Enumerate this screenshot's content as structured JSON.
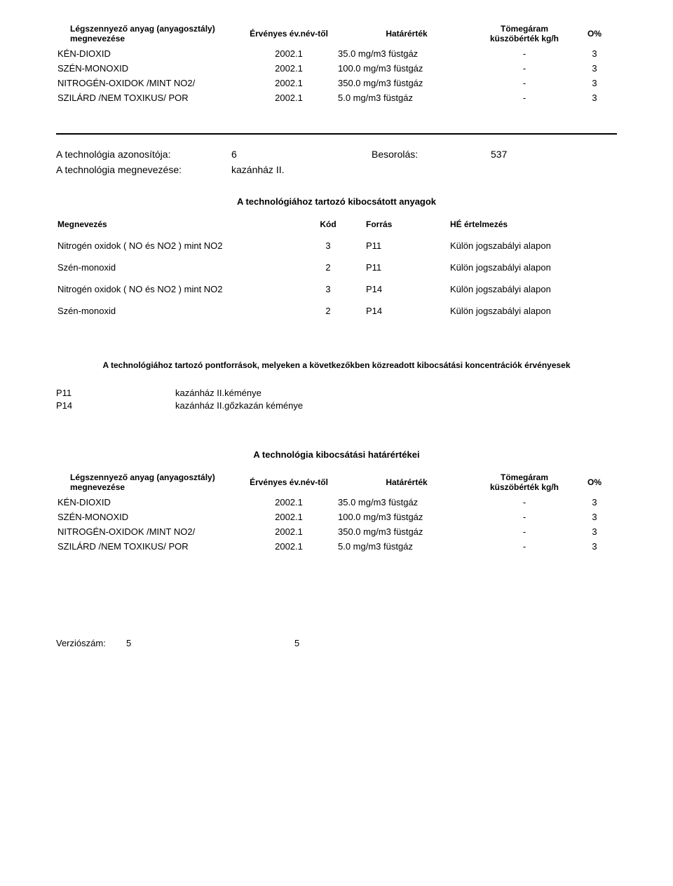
{
  "limits_header": {
    "name": "Légszennyező anyag (anyagosztály) megnevezése",
    "year": "Érvényes év.név-től",
    "limit": "Határérték",
    "flow": "Tömegáram küszöbérték kg/h",
    "pct": "O%"
  },
  "limits_rows_top": [
    {
      "name": "KÉN-DIOXID",
      "year": "2002.1",
      "limit": "35.0 mg/m3 füstgáz",
      "flow": "-",
      "pct": "3"
    },
    {
      "name": "SZÉN-MONOXID",
      "year": "2002.1",
      "limit": "100.0 mg/m3 füstgáz",
      "flow": "-",
      "pct": "3"
    },
    {
      "name": "NITROGÉN-OXIDOK /MINT NO2/",
      "year": "2002.1",
      "limit": "350.0 mg/m3 füstgáz",
      "flow": "-",
      "pct": "3"
    },
    {
      "name": "SZILÁRD /NEM TOXIKUS/ POR",
      "year": "2002.1",
      "limit": "5.0 mg/m3 füstgáz",
      "flow": "-",
      "pct": "3"
    }
  ],
  "tech": {
    "id_label": "A technológia azonosítója:",
    "id_value": "6",
    "class_label": "Besorolás:",
    "class_value": "537",
    "name_label": "A technológia megnevezése:",
    "name_value": "kazánház II."
  },
  "materials_title": "A technológiához tartozó kibocsátott anyagok",
  "materials_header": {
    "name": "Megnevezés",
    "kod": "Kód",
    "src": "Forrás",
    "he": "HÉ értelmezés"
  },
  "materials_rows": [
    {
      "name": "Nitrogén oxidok ( NO és NO2 )  mint NO2",
      "kod": "3",
      "src": "P11",
      "he": "Külön jogszabályi alapon"
    },
    {
      "name": "Szén-monoxid",
      "kod": "2",
      "src": "P11",
      "he": "Külön jogszabályi alapon"
    },
    {
      "name": "Nitrogén oxidok ( NO és NO2 )  mint NO2",
      "kod": "3",
      "src": "P14",
      "he": "Külön jogszabályi alapon"
    },
    {
      "name": "Szén-monoxid",
      "kod": "2",
      "src": "P14",
      "he": "Külön jogszabályi alapon"
    }
  ],
  "sources_title": "A technológiához tartozó pontforrások, melyeken a következőkben közreadott kibocsátási koncentrációk érvényesek",
  "sources": [
    {
      "code": "P11",
      "desc": "kazánház II.kéménye"
    },
    {
      "code": "P14",
      "desc": "kazánház II.gőzkazán kéménye"
    }
  ],
  "limits2_title": "A technológia kibocsátási határértékei",
  "limits_rows_bottom": [
    {
      "name": "KÉN-DIOXID",
      "year": "2002.1",
      "limit": "35.0 mg/m3 füstgáz",
      "flow": "-",
      "pct": "3"
    },
    {
      "name": "SZÉN-MONOXID",
      "year": "2002.1",
      "limit": "100.0 mg/m3 füstgáz",
      "flow": "-",
      "pct": "3"
    },
    {
      "name": "NITROGÉN-OXIDOK /MINT NO2/",
      "year": "2002.1",
      "limit": "350.0 mg/m3 füstgáz",
      "flow": "-",
      "pct": "3"
    },
    {
      "name": "SZILÁRD /NEM TOXIKUS/ POR",
      "year": "2002.1",
      "limit": "5.0 mg/m3 füstgáz",
      "flow": "-",
      "pct": "3"
    }
  ],
  "footer": {
    "version_label": "Verziószám:",
    "version_value": "5",
    "page": "5"
  }
}
